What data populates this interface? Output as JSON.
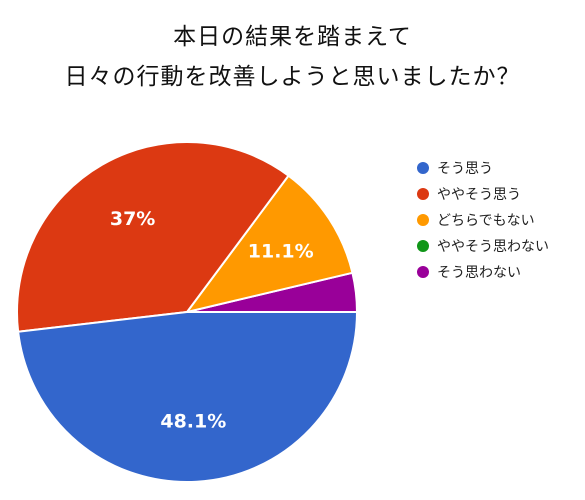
{
  "chart_data": {
    "type": "pie",
    "title": [
      "本日の結果を踏まえて",
      "日々の行動を改善しようと思いましたか？"
    ],
    "legend_position": "right",
    "slices": [
      {
        "label": "そう思う",
        "value": 48.1,
        "display": "48.1%",
        "color": "#3366cc"
      },
      {
        "label": "ややそう思う",
        "value": 37.0,
        "display": "37%",
        "color": "#dc3912"
      },
      {
        "label": "どちらでもない",
        "value": 11.1,
        "display": "11.1%",
        "color": "#ff9900"
      },
      {
        "label": "ややそう思わない",
        "value": 0,
        "display": "",
        "color": "#109618"
      },
      {
        "label": "そう思わない",
        "value": 3.7,
        "display": "",
        "color": "#990099"
      }
    ]
  }
}
